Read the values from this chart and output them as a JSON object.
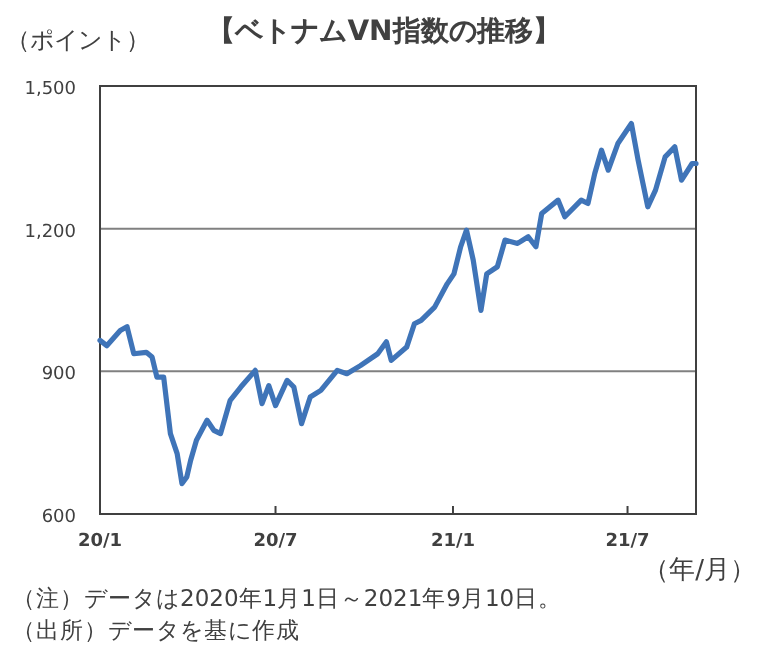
{
  "chart_data": {
    "type": "line",
    "title": "【ベトナムVN指数の推移】",
    "ylabel": "（ポイント）",
    "xlabel": "（年/月）",
    "x": [
      "2020-01-01",
      "2020-01-08",
      "2020-01-22",
      "2020-01-29",
      "2020-02-05",
      "2020-02-18",
      "2020-02-24",
      "2020-02-29",
      "2020-03-07",
      "2020-03-14",
      "2020-03-21",
      "2020-03-26",
      "2020-03-31",
      "2020-04-04",
      "2020-04-10",
      "2020-04-21",
      "2020-04-28",
      "2020-05-05",
      "2020-05-15",
      "2020-05-26",
      "2020-06-10",
      "2020-06-17",
      "2020-06-24",
      "2020-07-01",
      "2020-07-13",
      "2020-07-20",
      "2020-07-28",
      "2020-08-06",
      "2020-08-17",
      "2020-09-03",
      "2020-09-13",
      "2020-09-27",
      "2020-10-15",
      "2020-10-24",
      "2020-10-29",
      "2020-11-14",
      "2020-11-22",
      "2020-11-29",
      "2020-12-13",
      "2020-12-26",
      "2021-01-02",
      "2021-01-09",
      "2021-01-15",
      "2021-01-22",
      "2021-01-30",
      "2021-02-05",
      "2021-02-16",
      "2021-02-24",
      "2021-03-09",
      "2021-03-20",
      "2021-03-28",
      "2021-04-03",
      "2021-04-20",
      "2021-04-27",
      "2021-05-14",
      "2021-05-21",
      "2021-05-28",
      "2021-06-04",
      "2021-06-11",
      "2021-06-21",
      "2021-07-05",
      "2021-07-12",
      "2021-07-17",
      "2021-07-22",
      "2021-07-30",
      "2021-08-09",
      "2021-08-19",
      "2021-08-26",
      "2021-09-06",
      "2021-09-10"
    ],
    "series": [
      {
        "color": "#3f74b8",
        "values": [
          965,
          954,
          986,
          994,
          937,
          940,
          930,
          888,
          888,
          769,
          727,
          664,
          678,
          713,
          755,
          797,
          776,
          769,
          839,
          867,
          902,
          832,
          870,
          828,
          881,
          867,
          790,
          846,
          860,
          902,
          895,
          912,
          937,
          962,
          923,
          951,
          1000,
          1007,
          1035,
          1084,
          1105,
          1162,
          1197,
          1134,
          1028,
          1105,
          1120,
          1176,
          1169,
          1183,
          1162,
          1232,
          1260,
          1225,
          1260,
          1253,
          1316,
          1365,
          1323,
          1379,
          1421,
          1344,
          1295,
          1246,
          1281,
          1351,
          1372,
          1302,
          1337,
          1337
        ]
      }
    ],
    "xlim": [
      "2020-01-01",
      "2021-09-10"
    ],
    "xticks": [
      {
        "value": "2020-01-01",
        "label": "20/1"
      },
      {
        "value": "2020-07-01",
        "label": "20/7"
      },
      {
        "value": "2021-01-01",
        "label": "21/1"
      },
      {
        "value": "2021-07-01",
        "label": "21/7"
      }
    ],
    "ylim": [
      600,
      1500
    ],
    "yticks": [
      {
        "value": 600,
        "label": "600"
      },
      {
        "value": 900,
        "label": "900"
      },
      {
        "value": 1200,
        "label": "1,200"
      },
      {
        "value": 1500,
        "label": "1,500"
      }
    ],
    "grid": "y",
    "marker": "none",
    "line_style": "solid",
    "annotations": [
      "（注）データは2020年1月1日～2021年9月10日。",
      "（出所）データを基に作成"
    ]
  }
}
